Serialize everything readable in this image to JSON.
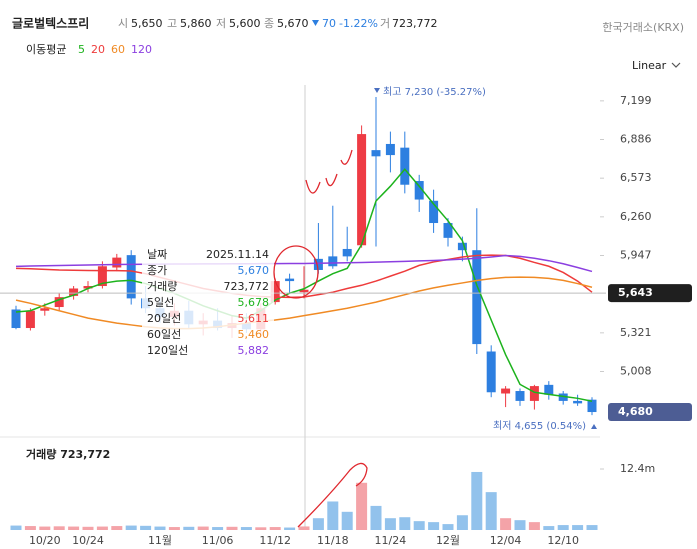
{
  "header": {
    "name": "글로벌텍스프리",
    "open_label": "시",
    "open": "5,650",
    "high_label": "고",
    "high": "5,860",
    "low_label": "저",
    "low": "5,600",
    "close_label": "종",
    "close": "5,670",
    "change": "70",
    "change_pct": "-1.22%",
    "volume_label": "거",
    "volume": "723,772",
    "exchange": "한국거래소(KRX)",
    "ma_title": "이동평균",
    "scale_mode": "Linear"
  },
  "tooltip": {
    "rows": [
      {
        "label": "날짜",
        "value": "2025.11.14",
        "color": "#222222"
      },
      {
        "label": "종가",
        "value": "5,670",
        "color": "#2d7fe0"
      },
      {
        "label": "거래량",
        "value": "723,772",
        "color": "#222222"
      },
      {
        "label": "5일선",
        "value": "5,678",
        "color": "#1db31d"
      },
      {
        "label": "20일선",
        "value": "5,611",
        "color": "#ee3b3b"
      },
      {
        "label": "60일선",
        "value": "5,460",
        "color": "#f08a24"
      },
      {
        "label": "120일선",
        "value": "5,882",
        "color": "#8b3fe0"
      }
    ]
  },
  "chart_data": [
    {
      "type": "candlestick",
      "categories": [
        null,
        null,
        "10/20",
        null,
        null,
        "10/24",
        null,
        null,
        null,
        null,
        "11월",
        null,
        null,
        null,
        "11/06",
        null,
        null,
        null,
        "11/12",
        null,
        null,
        null,
        "11/18",
        null,
        null,
        null,
        "11/24",
        null,
        null,
        null,
        "12월",
        null,
        null,
        null,
        "12/04",
        null,
        null,
        null,
        "12/10",
        null,
        null
      ],
      "open": [
        5510,
        5360,
        5500,
        5530,
        5620,
        5680,
        5700,
        5850,
        5950,
        5600,
        5520,
        5450,
        5500,
        5390,
        5420,
        5360,
        5400,
        5350,
        5570,
        5760,
        5650,
        5920,
        5940,
        6000,
        6030,
        6800,
        6850,
        6820,
        6550,
        6390,
        6210,
        6050,
        5990,
        5170,
        4830,
        4850,
        4770,
        4900,
        4830,
        4770,
        4780
      ],
      "high": [
        5540,
        5520,
        5560,
        5640,
        5700,
        5740,
        5900,
        5960,
        5990,
        5700,
        5600,
        5560,
        5580,
        5480,
        5520,
        5460,
        5480,
        5560,
        5760,
        5800,
        5860,
        6210,
        6350,
        6180,
        7000,
        7230,
        6950,
        6950,
        6600,
        6480,
        6250,
        6100,
        6330,
        5220,
        4890,
        4870,
        4900,
        4930,
        4850,
        4820,
        4800
      ],
      "low": [
        5350,
        5340,
        5460,
        5500,
        5590,
        5650,
        5680,
        5820,
        5550,
        5480,
        5400,
        5380,
        5360,
        5300,
        5340,
        5280,
        5320,
        5300,
        5550,
        5640,
        5600,
        5800,
        5840,
        5900,
        6010,
        6020,
        6620,
        6450,
        6300,
        6130,
        6020,
        5900,
        5150,
        4800,
        4720,
        4730,
        4700,
        4780,
        4740,
        4730,
        4655
      ],
      "close": [
        5360,
        5500,
        5520,
        5610,
        5680,
        5700,
        5860,
        5930,
        5600,
        5520,
        5450,
        5500,
        5390,
        5420,
        5360,
        5400,
        5350,
        5520,
        5740,
        5740,
        5670,
        5830,
        5860,
        5940,
        6930,
        6750,
        6760,
        6520,
        6400,
        6210,
        6090,
        5990,
        5230,
        4840,
        4870,
        4770,
        4890,
        4820,
        4770,
        4750,
        4680
      ],
      "up_color": "#ee3b44",
      "down_color": "#2d7fe0",
      "series": [
        {
          "name": "5",
          "color": "#1db31d",
          "values": [
            5490,
            5500,
            5546,
            5590,
            5626,
            5680,
            5722,
            5740,
            5746,
            5720,
            5680,
            5640,
            5590,
            5540,
            5500,
            5460,
            5440,
            5500,
            5586,
            5642,
            5678,
            5740,
            5800,
            5843,
            6035,
            6388,
            6508,
            6645,
            6508,
            6364,
            6228,
            6067,
            5706,
            5425,
            5144,
            4904,
            4840,
            4823,
            4807,
            4791,
            4767
          ]
        },
        {
          "name": "20",
          "color": "#ee3b3b",
          "values": [
            5843,
            5840,
            5835,
            5830,
            5828,
            5826,
            5825,
            5825,
            5822,
            5800,
            5770,
            5740,
            5710,
            5680,
            5660,
            5640,
            5625,
            5615,
            5610,
            5608,
            5611,
            5630,
            5650,
            5680,
            5706,
            5740,
            5780,
            5820,
            5867,
            5895,
            5915,
            5935,
            5947,
            5950,
            5947,
            5925,
            5891,
            5860,
            5810,
            5740,
            5650
          ]
        },
        {
          "name": "60",
          "color": "#f08a24",
          "values": [
            5586,
            5560,
            5530,
            5500,
            5470,
            5440,
            5420,
            5400,
            5385,
            5370,
            5360,
            5355,
            5355,
            5360,
            5370,
            5385,
            5400,
            5415,
            5425,
            5440,
            5460,
            5480,
            5500,
            5520,
            5545,
            5570,
            5600,
            5630,
            5660,
            5685,
            5706,
            5725,
            5745,
            5760,
            5770,
            5772,
            5770,
            5762,
            5746,
            5720,
            5690
          ]
        },
        {
          "name": "120",
          "color": "#8b3fe0",
          "values": [
            5859,
            5862,
            5864,
            5866,
            5868,
            5870,
            5872,
            5874,
            5875,
            5876,
            5877,
            5878,
            5878,
            5879,
            5879,
            5880,
            5880,
            5881,
            5881,
            5882,
            5882,
            5884,
            5886,
            5888,
            5890,
            5893,
            5896,
            5900,
            5904,
            5907,
            5912,
            5918,
            5925,
            5935,
            5947,
            5940,
            5925,
            5905,
            5880,
            5850,
            5818
          ]
        }
      ],
      "ylim": [
        4575,
        7303
      ],
      "yticks": [
        {
          "value": 5008,
          "label": "5,008"
        },
        {
          "value": 5321,
          "label": "5,321"
        },
        {
          "value": 5947,
          "label": "5,947"
        },
        {
          "value": 6260,
          "label": "6,260"
        },
        {
          "value": 6573,
          "label": "6,573"
        },
        {
          "value": 6886,
          "label": "6,886"
        },
        {
          "value": 7199,
          "label": "7,199"
        }
      ],
      "price_tags": [
        {
          "value": 5643,
          "label": "5,643",
          "color": "#1f1f1f"
        },
        {
          "value": 4680,
          "label": "4,680",
          "color": "#4d5d94"
        }
      ],
      "high_annotation": "최고 7,230 (-35.27%)",
      "low_annotation": "최저 4,655 (0.54%)"
    },
    {
      "type": "bar",
      "title": "거래량 723,772",
      "values": [
        900000,
        800000,
        700000,
        750000,
        700000,
        650000,
        700000,
        800000,
        900000,
        850000,
        700000,
        600000,
        650000,
        700000,
        600000,
        650000,
        600000,
        550000,
        600000,
        500000,
        723772,
        2400000,
        5800000,
        3700000,
        9600000,
        4900000,
        2400000,
        2600000,
        1800000,
        1600000,
        1200000,
        3000000,
        11800000,
        7700000,
        2400000,
        2000000,
        1600000,
        800000,
        1000000,
        1000000,
        1000000
      ],
      "up_color": "#f4a3a8",
      "down_color": "#92c2ec",
      "ylim": [
        0,
        18300000
      ],
      "yticks": [
        {
          "value": 12400000,
          "label": "12.4m"
        }
      ]
    }
  ]
}
